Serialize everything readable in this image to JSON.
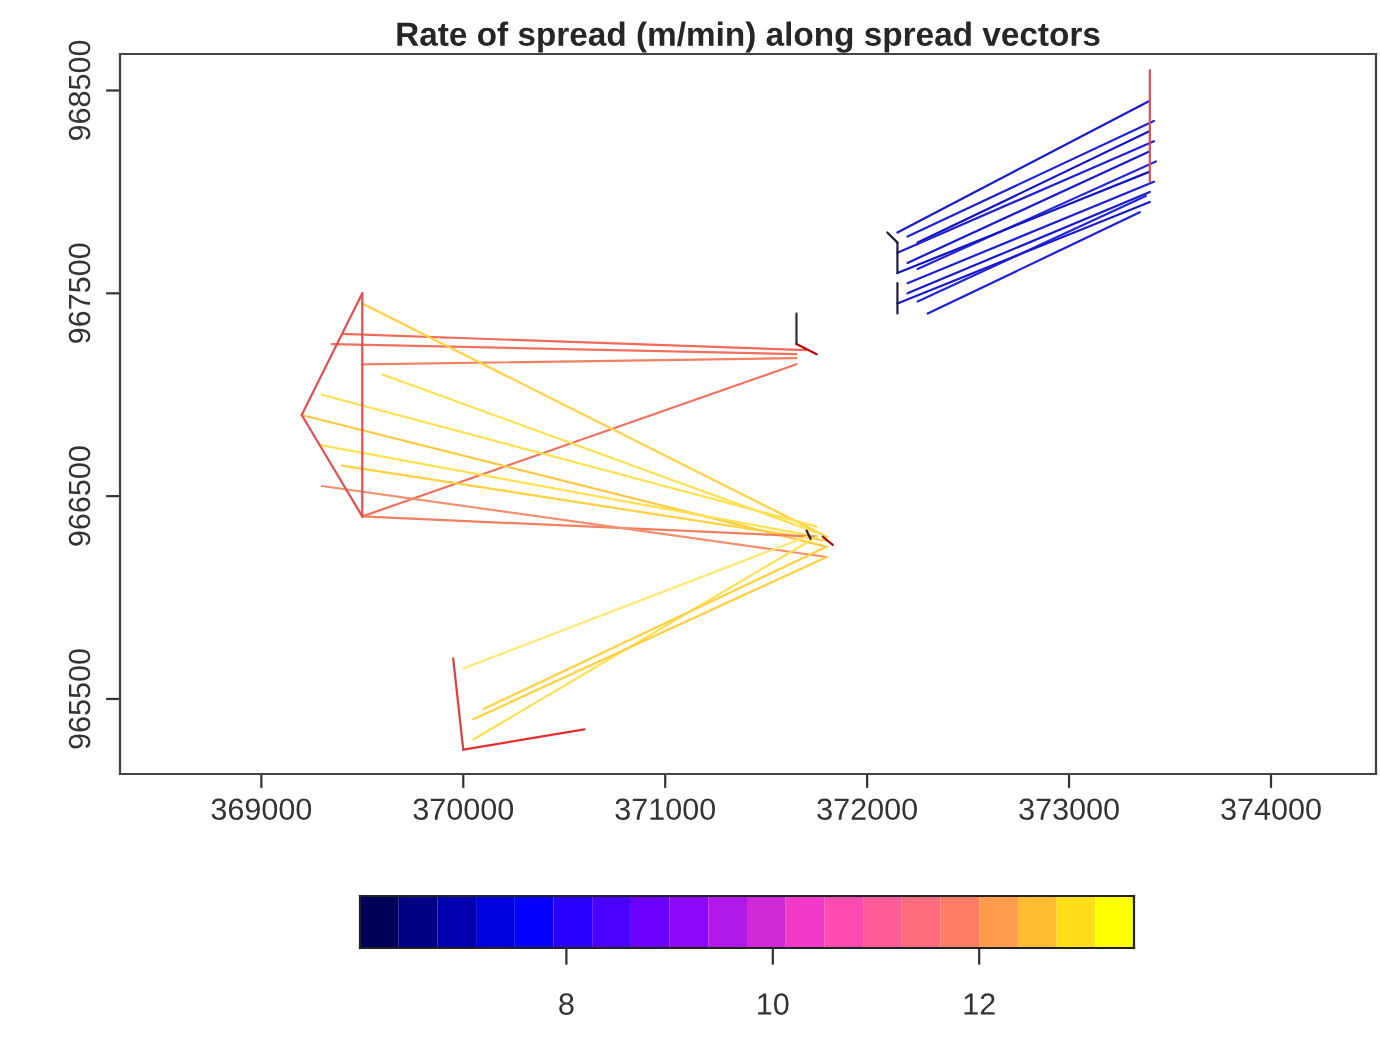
{
  "chart_data": {
    "type": "line",
    "title": "Rate of spread (m/min) along spread vectors",
    "xlim": [
      368300,
      374520
    ],
    "ylim": [
      965130,
      968680
    ],
    "xticks": [
      369000,
      370000,
      371000,
      372000,
      373000,
      374000
    ],
    "yticks": [
      965500,
      966500,
      967500,
      968500
    ],
    "clim": [
      6.0,
      13.5
    ],
    "cticks": [
      8,
      10,
      12
    ],
    "colors": [
      "#00005a",
      "#0000ff",
      "#8000ff",
      "#ff40c0",
      "#ff8060",
      "#ffff00"
    ],
    "series": [
      {
        "color": "#1a1ac8",
        "x": [
          372150,
          373400
        ],
        "values": [
          967800,
          968450
        ]
      },
      {
        "color": "#2020d0",
        "x": [
          372200,
          373420
        ],
        "values": [
          967780,
          968350
        ]
      },
      {
        "color": "#1515c0",
        "x": [
          372250,
          373400
        ],
        "values": [
          967750,
          968300
        ]
      },
      {
        "color": "#2020d0",
        "x": [
          372150,
          373420
        ],
        "values": [
          967700,
          968250
        ]
      },
      {
        "color": "#1a1ac8",
        "x": [
          372200,
          373400
        ],
        "values": [
          967650,
          968200
        ]
      },
      {
        "color": "#2525d8",
        "x": [
          372250,
          373430
        ],
        "values": [
          967620,
          968150
        ]
      },
      {
        "color": "#1515c0",
        "x": [
          372150,
          373400
        ],
        "values": [
          967600,
          968100
        ]
      },
      {
        "color": "#2020d0",
        "x": [
          372200,
          373420
        ],
        "values": [
          967550,
          968050
        ]
      },
      {
        "color": "#1a1ac8",
        "x": [
          372200,
          373400
        ],
        "values": [
          967500,
          968000
        ]
      },
      {
        "color": "#2525d8",
        "x": [
          372250,
          373380
        ],
        "values": [
          967460,
          967980
        ]
      },
      {
        "color": "#1a1ac8",
        "x": [
          372150,
          373400
        ],
        "values": [
          967450,
          967950
        ]
      },
      {
        "color": "#2020d0",
        "x": [
          372300,
          373350
        ],
        "values": [
          967400,
          967900
        ]
      },
      {
        "color": "#202040",
        "x": [
          372100,
          372150
        ],
        "values": [
          967800,
          967750
        ]
      },
      {
        "color": "#202040",
        "x": [
          372150,
          372150
        ],
        "values": [
          967750,
          967600
        ]
      },
      {
        "color": "#202040",
        "x": [
          372150,
          372150
        ],
        "values": [
          967550,
          967400
        ]
      },
      {
        "color": "#e05050",
        "x": [
          373400,
          373400
        ],
        "values": [
          968600,
          968050
        ]
      },
      {
        "color": "#f07060",
        "x": [
          369350,
          371650
        ],
        "values": [
          967250,
          967200
        ]
      },
      {
        "color": "#f06a5a",
        "x": [
          369400,
          371700
        ],
        "values": [
          967300,
          967220
        ]
      },
      {
        "color": "#f08060",
        "x": [
          369500,
          371650
        ],
        "values": [
          967150,
          967180
        ]
      },
      {
        "color": "#f07060",
        "x": [
          369500,
          371650
        ],
        "values": [
          966400,
          967150
        ]
      },
      {
        "color": "#ffd040",
        "x": [
          369500,
          371800
        ],
        "values": [
          967450,
          966300
        ]
      },
      {
        "color": "#ffe050",
        "x": [
          369300,
          371750
        ],
        "values": [
          967000,
          966350
        ]
      },
      {
        "color": "#ffc840",
        "x": [
          369200,
          371800
        ],
        "values": [
          966900,
          966250
        ]
      },
      {
        "color": "#ffe050",
        "x": [
          369300,
          371750
        ],
        "values": [
          966750,
          966300
        ]
      },
      {
        "color": "#ffd040",
        "x": [
          369400,
          371800
        ],
        "values": [
          966650,
          966280
        ]
      },
      {
        "color": "#ffe050",
        "x": [
          369600,
          371750
        ],
        "values": [
          967100,
          966320
        ]
      },
      {
        "color": "#f08060",
        "x": [
          369500,
          371750
        ],
        "values": [
          966400,
          966300
        ]
      },
      {
        "color": "#f09070",
        "x": [
          369300,
          371800
        ],
        "values": [
          966550,
          966200
        ]
      },
      {
        "color": "#e05050",
        "x": [
          369500,
          369200
        ],
        "values": [
          967500,
          966900
        ]
      },
      {
        "color": "#e05050",
        "x": [
          369200,
          369500
        ],
        "values": [
          966900,
          966400
        ]
      },
      {
        "color": "#e05050",
        "x": [
          369500,
          369500
        ],
        "values": [
          967500,
          966400
        ]
      },
      {
        "color": "#ffe050",
        "x": [
          371750,
          370050
        ],
        "values": [
          966300,
          965300
        ]
      },
      {
        "color": "#ffd040",
        "x": [
          371800,
          370100
        ],
        "values": [
          966250,
          965450
        ]
      },
      {
        "color": "#ffe870",
        "x": [
          371700,
          370000
        ],
        "values": [
          966300,
          965650
        ]
      },
      {
        "color": "#ffd040",
        "x": [
          371800,
          370050
        ],
        "values": [
          966200,
          965400
        ]
      },
      {
        "color": "#e04040",
        "x": [
          369950,
          370000
        ],
        "values": [
          965700,
          965250
        ]
      },
      {
        "color": "#e03030",
        "x": [
          370000,
          370600
        ],
        "values": [
          965250,
          965350
        ]
      },
      {
        "color": "#c00000",
        "x": [
          371650,
          371750
        ],
        "values": [
          967250,
          967200
        ]
      },
      {
        "color": "#303030",
        "x": [
          371650,
          371650
        ],
        "values": [
          967400,
          967250
        ]
      },
      {
        "color": "#202020",
        "x": [
          371700,
          371720
        ],
        "values": [
          966330,
          966290
        ]
      },
      {
        "color": "#a01010",
        "x": [
          371780,
          371830
        ],
        "values": [
          966300,
          966260
        ]
      }
    ]
  }
}
